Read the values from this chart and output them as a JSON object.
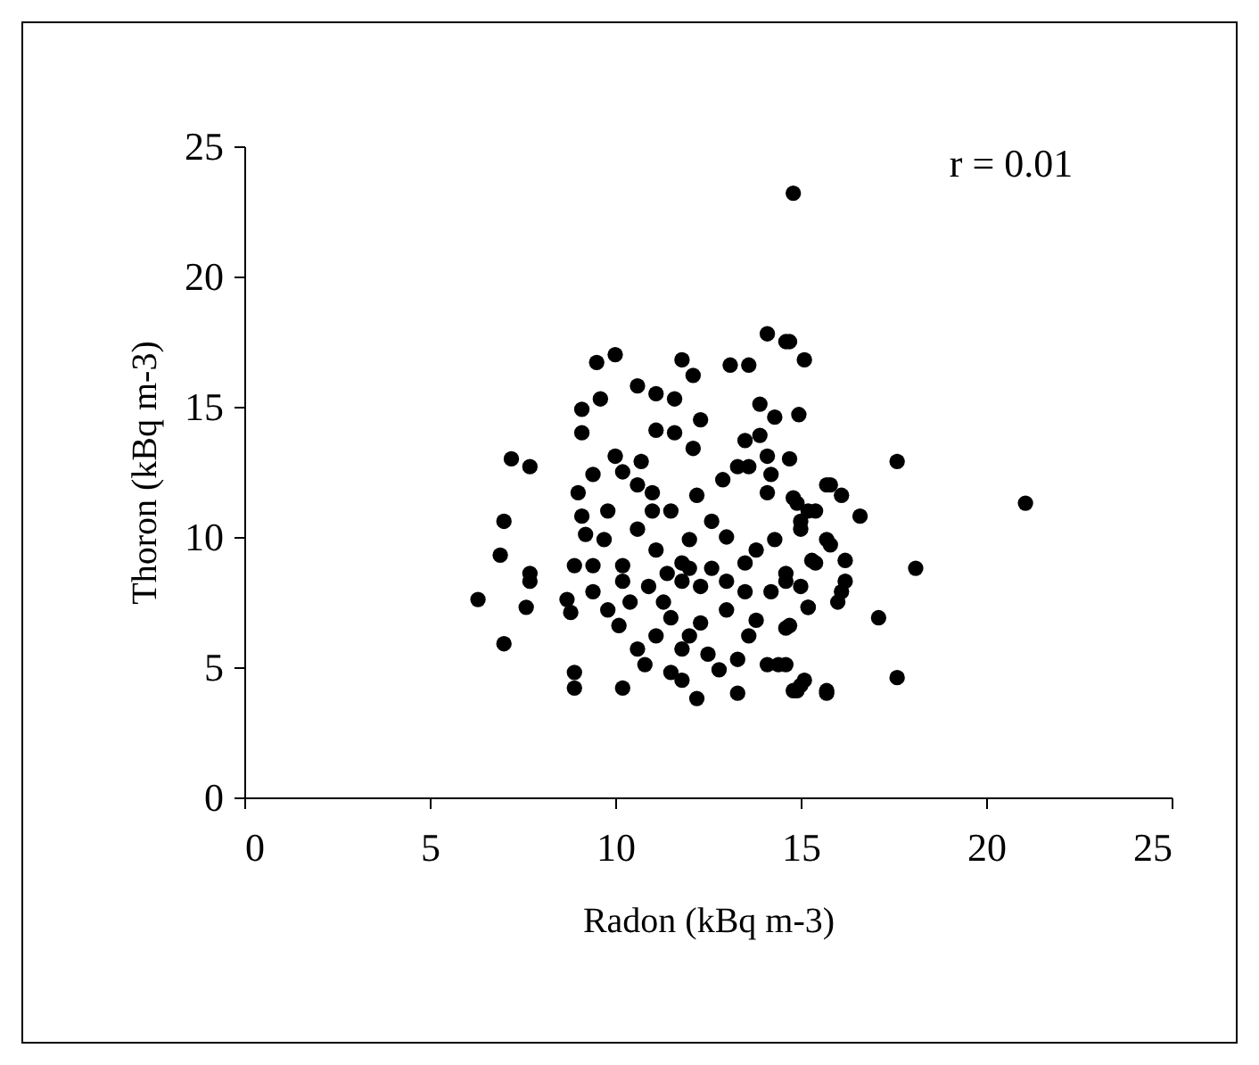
{
  "chart_data": {
    "type": "scatter",
    "xlabel": "Radon (kBq m-3)",
    "ylabel": "Thoron (kBq m-3)",
    "annotations": [
      "r = 0.01"
    ],
    "xlim": [
      0,
      25
    ],
    "ylim": [
      0,
      25
    ],
    "xticks": [
      0,
      5,
      10,
      15,
      20,
      25
    ],
    "yticks": [
      0,
      5,
      10,
      15,
      20,
      25
    ],
    "grid": false,
    "marker": "circle",
    "series": [
      {
        "color": "#000000",
        "x": [
          14.8,
          21.06,
          17.6,
          18.1,
          15.1,
          14.7,
          14.95,
          14.7,
          15.8,
          16.1,
          16.6,
          15.4,
          14.9,
          15.0,
          15.8,
          15.3,
          16.2,
          16.2,
          15.0,
          16.1,
          16.0,
          15.2,
          14.7,
          17.1,
          17.6,
          15.0,
          14.8,
          15.7,
          14.6,
          14.1,
          14.6,
          13.1,
          13.6,
          11.8,
          12.1,
          10.0,
          9.5,
          10.6,
          11.1,
          11.6,
          9.6,
          9.1,
          9.1,
          12.3,
          11.1,
          11.6,
          12.1,
          13.9,
          14.3,
          13.5,
          13.9,
          14.1,
          7.2,
          7.7,
          10.0,
          10.7,
          9.4,
          10.2,
          9.0,
          10.6,
          11.0,
          12.2,
          12.9,
          13.3,
          13.6,
          14.1,
          14.2,
          14.8,
          15.7,
          7.0,
          6.9,
          7.7,
          9.1,
          9.8,
          9.2,
          9.7,
          8.9,
          9.4,
          10.6,
          11.0,
          11.5,
          12.6,
          13.0,
          13.8,
          14.3,
          15.0,
          15.2,
          15.7,
          15.4,
          12.0,
          11.8,
          11.1,
          10.2,
          11.4,
          12.6,
          13.5,
          14.6,
          6.3,
          7.0,
          7.6,
          7.7,
          8.7,
          8.8,
          9.4,
          8.9,
          8.9,
          10.2,
          9.8,
          10.1,
          10.4,
          10.9,
          11.3,
          11.1,
          10.6,
          10.8,
          11.5,
          11.8,
          12.2,
          11.8,
          12.0,
          12.3,
          12.5,
          12.8,
          13.3,
          13.3,
          13.6,
          14.1,
          14.4,
          14.9,
          15.1,
          15.7,
          14.6,
          13.8,
          13.0,
          13.5,
          12.3,
          11.8,
          13.0,
          14.2,
          15.2,
          14.6,
          11.5,
          10.2,
          12.0
        ],
        "values": [
          23.2,
          11.3,
          12.9,
          8.8,
          16.8,
          17.5,
          14.7,
          13.0,
          12.0,
          11.6,
          10.8,
          11.0,
          11.3,
          10.6,
          9.7,
          9.1,
          9.1,
          8.3,
          8.1,
          7.9,
          7.5,
          7.3,
          6.6,
          6.9,
          4.6,
          4.3,
          4.1,
          4.0,
          5.1,
          17.8,
          17.5,
          16.6,
          16.6,
          16.8,
          16.2,
          17.0,
          16.7,
          15.8,
          15.5,
          15.3,
          15.3,
          14.9,
          14.0,
          14.5,
          14.1,
          14.0,
          13.4,
          15.1,
          14.6,
          13.7,
          13.9,
          13.1,
          13.0,
          12.7,
          13.1,
          12.9,
          12.4,
          12.5,
          11.7,
          12.0,
          11.7,
          11.6,
          12.2,
          12.7,
          12.7,
          11.7,
          12.4,
          11.5,
          12.0,
          10.6,
          9.3,
          8.6,
          10.8,
          11.0,
          10.1,
          9.9,
          8.9,
          8.9,
          10.3,
          11.0,
          11.0,
          10.6,
          10.0,
          9.5,
          9.9,
          10.3,
          11.0,
          9.9,
          9.0,
          9.9,
          9.0,
          9.5,
          8.9,
          8.6,
          8.8,
          9.0,
          8.6,
          7.6,
          5.9,
          7.3,
          8.3,
          7.6,
          7.1,
          7.9,
          4.8,
          4.2,
          4.2,
          7.2,
          6.6,
          7.5,
          8.1,
          7.5,
          6.2,
          5.7,
          5.1,
          4.8,
          4.5,
          3.8,
          5.7,
          6.2,
          6.7,
          5.5,
          4.9,
          4.0,
          5.3,
          6.2,
          5.1,
          5.1,
          4.1,
          4.5,
          4.1,
          6.5,
          6.8,
          7.2,
          7.9,
          8.1,
          8.3,
          8.3,
          7.9,
          7.3,
          8.3,
          6.9,
          8.3,
          8.8
        ]
      }
    ]
  }
}
